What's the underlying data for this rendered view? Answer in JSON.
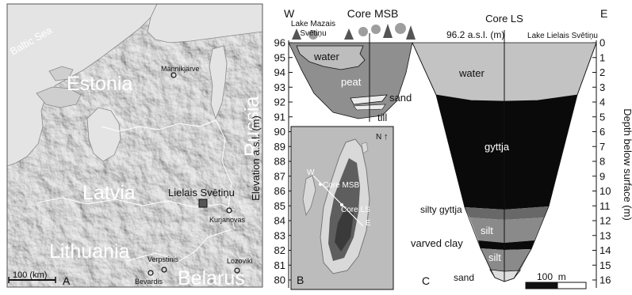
{
  "map_a": {
    "panel_label": "A",
    "sea_label": "Baltic Sea",
    "countries": [
      "Estonia",
      "Russia",
      "Latvia",
      "Lithuania",
      "Belarus"
    ],
    "sites": [
      "Männikjärve",
      "Lielais Svētiņu",
      "Kurjanovas",
      "Verpstinis",
      "Bevardis",
      "Lozoviki"
    ],
    "scale_bar": "100 (km)"
  },
  "inset_b": {
    "panel_label": "B",
    "north_label": "N",
    "north_arrow": "↑",
    "labels": [
      "W",
      "Core MSB",
      "Core LS",
      "E"
    ]
  },
  "profile_c": {
    "panel_label": "C",
    "west_label": "W",
    "east_label": "E",
    "core_msb": "Core MSB",
    "core_ls": "Core LS",
    "lake_mazais": [
      "Lake Mazais",
      "Svētiņu"
    ],
    "lake_lielais": "Lake Lielais Svētiņu",
    "surface_elevation": "96.2 a.s.l. (m)",
    "left_axis_label": "Elevation a.s.l. (m)",
    "right_axis_label": "Depth below surface (m)",
    "elevation_ticks": [
      "96",
      "95",
      "94",
      "93",
      "92",
      "91",
      "90",
      "89",
      "88",
      "87",
      "86",
      "85",
      "84",
      "83",
      "82",
      "81",
      "80"
    ],
    "depth_ticks": [
      "0",
      "1",
      "2",
      "3",
      "4",
      "5",
      "6",
      "7",
      "8",
      "9",
      "10",
      "11",
      "12",
      "13",
      "14",
      "15",
      "16"
    ],
    "units": {
      "water_msb": "water",
      "peat": "peat",
      "sand_msb": "sand",
      "till": "till",
      "water_ls": "water",
      "gyttja": "gyttja",
      "silty_gyttja": "silty gyttja",
      "silt_upper": "silt",
      "varved_clay": "varved clay",
      "silt_lower": "silt",
      "sand_ls": "sand"
    },
    "scale_bar": "100  m"
  }
}
